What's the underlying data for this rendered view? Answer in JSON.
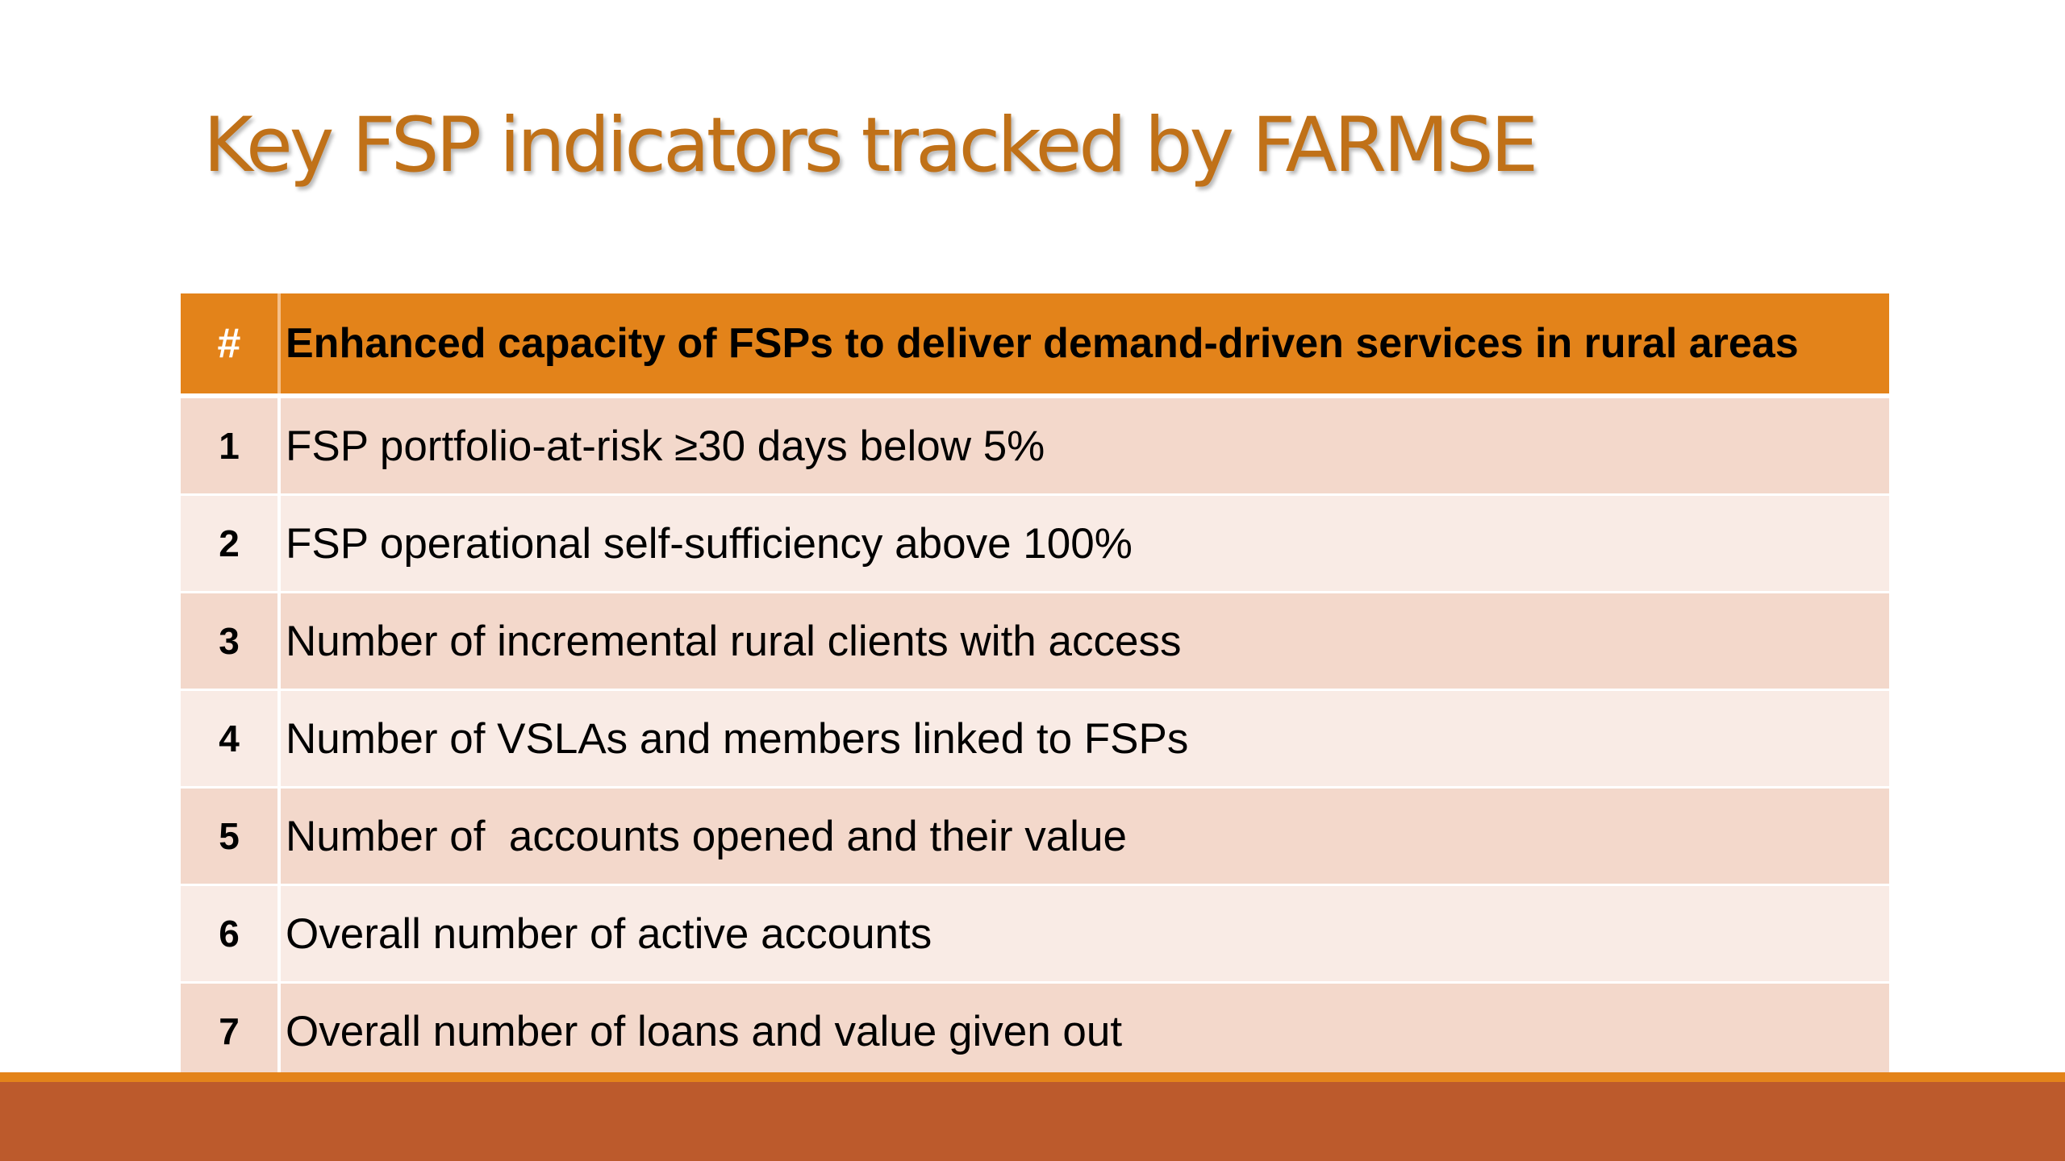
{
  "slide": {
    "title": "Key FSP indicators tracked by FARMSE"
  },
  "table": {
    "header": {
      "number": "#",
      "text": "Enhanced capacity of FSPs to deliver demand-driven services in rural areas"
    },
    "rows": [
      {
        "number": "1",
        "text": "FSP portfolio-at-risk ≥30 days below 5%"
      },
      {
        "number": "2",
        "text": "FSP operational self-sufficiency above 100%"
      },
      {
        "number": "3",
        "text": "Number of incremental rural clients with access"
      },
      {
        "number": "4",
        "text": "Number of VSLAs and members linked to FSPs"
      },
      {
        "number": "5",
        "text": "Number of  accounts opened and their value"
      },
      {
        "number": "6",
        "text": "Overall number of active accounts"
      },
      {
        "number": "7",
        "text": "Overall number of loans and value given out"
      }
    ]
  },
  "colors": {
    "title": "#c07118",
    "header_bg": "#e3831a",
    "row_dark": "#f3d8cb",
    "row_light": "#f9ebe5",
    "footer_band": "#bc5a2c"
  }
}
